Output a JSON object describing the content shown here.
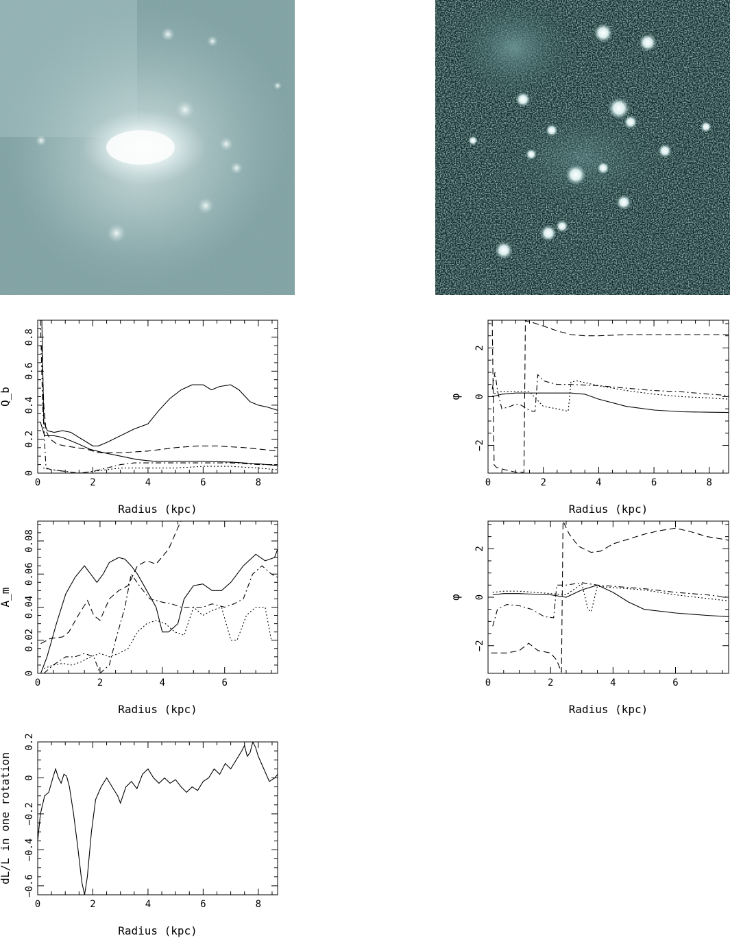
{
  "images": [
    {
      "name": "smooth-galaxy-image",
      "colors": {
        "bg": "#6f9396",
        "haze": "#a7c3c4",
        "core": "#ffffff"
      }
    },
    {
      "name": "noisy-galaxy-image",
      "colors": {
        "bg": "#0c2424",
        "speckle": "#7fa6a6",
        "knot": "#ffffff"
      }
    }
  ],
  "chart_data": [
    {
      "type": "line",
      "xlabel": "Radius (kpc)",
      "ylabel": "Q_b",
      "xlim": [
        0,
        8.7
      ],
      "ylim": [
        0,
        0.9
      ],
      "xticks": [
        0,
        2,
        4,
        6,
        8
      ],
      "xtick_labels": [
        "0",
        "2",
        "4",
        "6",
        "8"
      ],
      "yticks": [
        0,
        0.2,
        0.4,
        0.6,
        0.8
      ],
      "ytick_labels": [
        "0",
        "0.2",
        "0.4",
        "0.6",
        "0.8"
      ],
      "series": [
        {
          "style": "solid",
          "x": [
            0.15,
            0.22,
            0.35,
            0.6,
            0.9,
            1.2,
            1.5,
            1.8,
            2.0,
            2.2,
            2.5,
            3.0,
            3.5,
            4.0,
            4.4,
            4.8,
            5.2,
            5.6,
            6.0,
            6.3,
            6.6,
            7.0,
            7.3,
            7.7,
            8.0,
            8.3,
            8.7
          ],
          "y": [
            0.9,
            0.3,
            0.25,
            0.24,
            0.25,
            0.24,
            0.21,
            0.18,
            0.16,
            0.16,
            0.18,
            0.22,
            0.26,
            0.29,
            0.37,
            0.44,
            0.49,
            0.52,
            0.52,
            0.49,
            0.51,
            0.52,
            0.49,
            0.42,
            0.4,
            0.39,
            0.37
          ]
        },
        {
          "style": "solid",
          "x": [
            0.1,
            0.25,
            0.4,
            0.6,
            0.9,
            1.2,
            1.5,
            1.9,
            2.4,
            3.0,
            3.6,
            4.2,
            5.0,
            6.0,
            7.0,
            8.0,
            8.7
          ],
          "y": [
            0.3,
            0.22,
            0.22,
            0.22,
            0.21,
            0.19,
            0.17,
            0.14,
            0.12,
            0.1,
            0.08,
            0.07,
            0.07,
            0.07,
            0.065,
            0.055,
            0.045
          ]
        },
        {
          "style": "dashed",
          "x": [
            0.15,
            0.22,
            0.3,
            0.45,
            0.7,
            1.0,
            1.4,
            1.8,
            2.2,
            3.0,
            4.0,
            5.0,
            5.8,
            6.5,
            7.5,
            8.7
          ],
          "y": [
            0.75,
            0.4,
            0.25,
            0.2,
            0.17,
            0.16,
            0.15,
            0.14,
            0.12,
            0.12,
            0.13,
            0.15,
            0.16,
            0.16,
            0.15,
            0.13
          ]
        },
        {
          "style": "dashdot",
          "x": [
            0.1,
            0.18,
            0.3,
            0.5,
            1.0,
            1.5,
            2.0,
            2.5,
            3.0,
            3.5,
            4.0,
            5.0,
            6.0,
            7.0,
            8.0,
            8.7
          ],
          "y": [
            0.9,
            0.4,
            0.03,
            0.02,
            0.01,
            0.0,
            0.01,
            0.03,
            0.05,
            0.06,
            0.06,
            0.06,
            0.06,
            0.06,
            0.05,
            0.05
          ]
        },
        {
          "style": "dotted",
          "x": [
            0.2,
            0.5,
            1.0,
            1.5,
            2.0,
            2.5,
            3.0,
            4.0,
            5.0,
            6.0,
            7.0,
            8.0,
            8.7
          ],
          "y": [
            0.03,
            0.02,
            0.01,
            0.0,
            0.01,
            0.02,
            0.03,
            0.03,
            0.03,
            0.04,
            0.04,
            0.03,
            0.02
          ]
        }
      ]
    },
    {
      "type": "line",
      "xlabel": "Radius (kpc)",
      "ylabel": "φ",
      "xlim": [
        0,
        8.7
      ],
      "ylim": [
        -3.14,
        3.14
      ],
      "xticks": [
        0,
        2,
        4,
        6,
        8
      ],
      "xtick_labels": [
        "0",
        "2",
        "4",
        "6",
        "8"
      ],
      "yticks": [
        -2,
        0,
        2
      ],
      "ytick_labels": [
        "−2",
        "0",
        "2"
      ],
      "series": [
        {
          "style": "dashed",
          "x": [
            0.15,
            0.22,
            0.3,
            0.6,
            1.0,
            1.3,
            1.35,
            1.4,
            1.6,
            2.0,
            2.5,
            3.0,
            3.5,
            4.0,
            5.0,
            6.0,
            7.0,
            8.0,
            8.7
          ],
          "y": [
            3.14,
            -2.8,
            -2.9,
            -3.0,
            -3.1,
            -3.1,
            3.14,
            3.1,
            3.05,
            2.9,
            2.7,
            2.55,
            2.5,
            2.5,
            2.55,
            2.55,
            2.55,
            2.55,
            2.55
          ]
        },
        {
          "style": "solid",
          "x": [
            0.15,
            0.5,
            1.0,
            2.0,
            3.0,
            3.5,
            4.0,
            5.0,
            6.0,
            7.0,
            8.0,
            8.7
          ],
          "y": [
            0.0,
            0.1,
            0.15,
            0.15,
            0.15,
            0.1,
            -0.1,
            -0.4,
            -0.55,
            -0.62,
            -0.64,
            -0.65
          ]
        },
        {
          "style": "dashdot",
          "x": [
            0.15,
            0.25,
            0.35,
            0.5,
            0.8,
            1.0,
            1.2,
            1.4,
            1.6,
            1.7,
            1.8,
            2.0,
            2.5,
            3.0,
            4.0,
            5.0,
            6.0,
            7.0,
            8.0,
            8.7
          ],
          "y": [
            0.3,
            1.0,
            0.2,
            -0.5,
            -0.4,
            -0.3,
            -0.35,
            -0.5,
            -0.6,
            -0.6,
            0.9,
            0.65,
            0.5,
            0.5,
            0.45,
            0.35,
            0.25,
            0.2,
            0.1,
            0.05
          ]
        },
        {
          "style": "dotted",
          "x": [
            0.15,
            0.3,
            0.6,
            1.0,
            1.5,
            2.0,
            2.5,
            2.7,
            2.9,
            3.0,
            3.2,
            4.0,
            5.0,
            6.0,
            7.0,
            8.0,
            8.7
          ],
          "y": [
            0.0,
            0.2,
            0.2,
            0.2,
            0.2,
            -0.4,
            -0.5,
            -0.55,
            -0.6,
            0.6,
            0.65,
            0.45,
            0.25,
            0.1,
            0.0,
            -0.05,
            -0.1
          ]
        }
      ]
    },
    {
      "type": "line",
      "xlabel": "Radius (kpc)",
      "ylabel": "A_m",
      "xlim": [
        0,
        7.7
      ],
      "ylim": [
        0,
        0.092
      ],
      "xticks": [
        0,
        2,
        4,
        6
      ],
      "xtick_labels": [
        "0",
        "2",
        "4",
        "6"
      ],
      "yticks": [
        0,
        0.02,
        0.04,
        0.06,
        0.08
      ],
      "ytick_labels": [
        "0",
        "0.02",
        "0.04",
        "0.06",
        "0.08"
      ],
      "series": [
        {
          "style": "solid",
          "x": [
            0.1,
            0.3,
            0.6,
            0.9,
            1.2,
            1.5,
            1.7,
            1.9,
            2.1,
            2.3,
            2.6,
            2.8,
            3.0,
            3.2,
            3.5,
            3.8,
            4.0,
            4.2,
            4.5,
            4.7,
            5.0,
            5.3,
            5.6,
            5.9,
            6.2,
            6.6,
            7.0,
            7.3,
            7.6,
            7.7
          ],
          "y": [
            0.0,
            0.01,
            0.03,
            0.048,
            0.058,
            0.065,
            0.06,
            0.055,
            0.06,
            0.067,
            0.07,
            0.069,
            0.065,
            0.06,
            0.05,
            0.04,
            0.025,
            0.025,
            0.03,
            0.045,
            0.053,
            0.054,
            0.05,
            0.05,
            0.055,
            0.065,
            0.072,
            0.068,
            0.07,
            0.075
          ]
        },
        {
          "style": "dashed",
          "x": [
            0.1,
            0.4,
            0.8,
            1.0,
            1.3,
            1.6,
            1.8,
            2.0,
            2.3,
            2.6,
            2.9,
            3.2,
            3.5,
            3.8,
            4.2,
            4.5,
            4.6
          ],
          "y": [
            0.018,
            0.021,
            0.022,
            0.025,
            0.035,
            0.044,
            0.035,
            0.032,
            0.045,
            0.05,
            0.053,
            0.065,
            0.068,
            0.066,
            0.075,
            0.088,
            0.092
          ]
        },
        {
          "style": "dashdot",
          "x": [
            0.2,
            0.5,
            0.9,
            1.2,
            1.5,
            1.8,
            2.0,
            2.3,
            2.5,
            2.8,
            3.0,
            3.3,
            3.6,
            4.0,
            4.3,
            4.6,
            5.0,
            5.3,
            5.6,
            6.0,
            6.3,
            6.6,
            6.9,
            7.2,
            7.5,
            7.7
          ],
          "y": [
            0.0,
            0.005,
            0.01,
            0.01,
            0.012,
            0.01,
            0.0,
            0.005,
            0.02,
            0.04,
            0.06,
            0.052,
            0.045,
            0.043,
            0.042,
            0.04,
            0.04,
            0.04,
            0.042,
            0.04,
            0.042,
            0.045,
            0.06,
            0.065,
            0.06,
            0.058
          ]
        },
        {
          "style": "dotted",
          "x": [
            0.2,
            0.5,
            0.8,
            1.1,
            1.4,
            1.7,
            2.0,
            2.3,
            2.6,
            2.9,
            3.2,
            3.5,
            3.8,
            4.1,
            4.4,
            4.7,
            5.0,
            5.3,
            5.6,
            5.9,
            6.2,
            6.4,
            6.7,
            7.0,
            7.3,
            7.5
          ],
          "y": [
            0.003,
            0.005,
            0.006,
            0.005,
            0.007,
            0.01,
            0.012,
            0.01,
            0.012,
            0.015,
            0.025,
            0.03,
            0.032,
            0.03,
            0.025,
            0.023,
            0.04,
            0.035,
            0.038,
            0.04,
            0.02,
            0.02,
            0.035,
            0.04,
            0.04,
            0.02
          ]
        }
      ]
    },
    {
      "type": "line",
      "xlabel": "Radius (kpc)",
      "ylabel": "φ",
      "xlim": [
        0,
        7.7
      ],
      "ylim": [
        -3.14,
        3.14
      ],
      "xticks": [
        0,
        2,
        4,
        6
      ],
      "xtick_labels": [
        "0",
        "2",
        "4",
        "6"
      ],
      "yticks": [
        -2,
        0,
        2
      ],
      "ytick_labels": [
        "−2",
        "0",
        "2"
      ],
      "series": [
        {
          "style": "dashed",
          "x": [
            0.1,
            0.2,
            0.6,
            1.0,
            1.3,
            1.6,
            2.0,
            2.2,
            2.35,
            2.4,
            2.6,
            2.9,
            3.3,
            3.6,
            4.0,
            4.5,
            5.0,
            5.5,
            6.0,
            6.5,
            7.0,
            7.5,
            7.7
          ],
          "y": [
            -2.3,
            -2.3,
            -2.3,
            -2.2,
            -1.9,
            -2.2,
            -2.3,
            -2.6,
            -3.1,
            3.14,
            2.6,
            2.1,
            1.85,
            1.9,
            2.2,
            2.4,
            2.6,
            2.75,
            2.85,
            2.7,
            2.5,
            2.4,
            2.35
          ]
        },
        {
          "style": "solid",
          "x": [
            0.15,
            0.5,
            1.0,
            2.0,
            2.5,
            3.0,
            3.5,
            4.0,
            4.5,
            5.0,
            6.0,
            7.0,
            7.7
          ],
          "y": [
            0.1,
            0.15,
            0.15,
            0.1,
            0.0,
            0.3,
            0.5,
            0.2,
            -0.2,
            -0.5,
            -0.65,
            -0.75,
            -0.8
          ]
        },
        {
          "style": "dashdot",
          "x": [
            0.15,
            0.3,
            0.6,
            1.0,
            1.4,
            1.8,
            2.1,
            2.2,
            2.5,
            3.0,
            3.5,
            4.0,
            5.0,
            6.0,
            7.0,
            7.7
          ],
          "y": [
            -1.2,
            -0.5,
            -0.3,
            -0.35,
            -0.5,
            -0.8,
            -0.85,
            0.5,
            0.5,
            0.6,
            0.5,
            0.45,
            0.35,
            0.2,
            0.1,
            0.0
          ]
        },
        {
          "style": "dotted",
          "x": [
            0.15,
            0.5,
            1.0,
            1.5,
            2.0,
            2.5,
            3.0,
            3.2,
            3.3,
            3.5,
            4.0,
            5.0,
            6.0,
            7.0,
            7.7
          ],
          "y": [
            0.2,
            0.25,
            0.25,
            0.2,
            0.15,
            0.1,
            0.55,
            -0.5,
            -0.6,
            0.45,
            0.4,
            0.3,
            0.1,
            -0.05,
            -0.15
          ]
        }
      ]
    },
    {
      "type": "line",
      "xlabel": "Radius (kpc)",
      "ylabel": "dL/L in one rotation",
      "xlim": [
        0,
        8.7
      ],
      "ylim": [
        -0.65,
        0.2
      ],
      "xticks": [
        0,
        2,
        4,
        6,
        8
      ],
      "xtick_labels": [
        "0",
        "2",
        "4",
        "6",
        "8"
      ],
      "yticks": [
        -0.6,
        -0.4,
        -0.2,
        0,
        0.2
      ],
      "ytick_labels": [
        "−0.6",
        "−0.4",
        "−0.2",
        "0",
        "0.2"
      ],
      "series": [
        {
          "style": "solid",
          "x": [
            0.0,
            0.1,
            0.25,
            0.4,
            0.55,
            0.65,
            0.75,
            0.85,
            0.95,
            1.05,
            1.15,
            1.3,
            1.45,
            1.6,
            1.7,
            1.8,
            1.95,
            2.1,
            2.3,
            2.5,
            2.7,
            2.9,
            3.0,
            3.2,
            3.4,
            3.6,
            3.8,
            4.0,
            4.2,
            4.4,
            4.6,
            4.8,
            5.0,
            5.2,
            5.4,
            5.6,
            5.8,
            6.0,
            6.2,
            6.4,
            6.6,
            6.8,
            7.0,
            7.2,
            7.4,
            7.5,
            7.6,
            7.7,
            7.8,
            7.9,
            8.0,
            8.2,
            8.4,
            8.6,
            8.7
          ],
          "y": [
            -0.35,
            -0.2,
            -0.1,
            -0.08,
            0.0,
            0.05,
            0.0,
            -0.03,
            0.02,
            0.01,
            -0.05,
            -0.2,
            -0.38,
            -0.58,
            -0.65,
            -0.55,
            -0.3,
            -0.12,
            -0.05,
            0.0,
            -0.05,
            -0.1,
            -0.14,
            -0.05,
            -0.02,
            -0.06,
            0.02,
            0.05,
            0.0,
            -0.03,
            0.0,
            -0.03,
            -0.01,
            -0.05,
            -0.08,
            -0.05,
            -0.07,
            -0.02,
            0.0,
            0.05,
            0.02,
            0.08,
            0.05,
            0.1,
            0.15,
            0.18,
            0.12,
            0.14,
            0.2,
            0.17,
            0.12,
            0.05,
            -0.02,
            0.0,
            0.02
          ]
        }
      ]
    }
  ]
}
